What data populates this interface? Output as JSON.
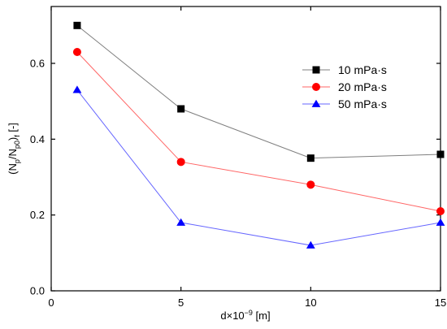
{
  "chart_data": {
    "type": "line",
    "title": "",
    "xlabel": {
      "pre": "d×10",
      "sup": "−9",
      "post": " [m]"
    },
    "ylabel": {
      "pre": "(N",
      "sub1": "p",
      "mid": "/N",
      "sub2": "p0",
      "close": ")",
      "sub3": "f",
      "post": " [-]"
    },
    "xlim": [
      0,
      15
    ],
    "ylim": [
      0,
      0.75
    ],
    "x_ticks": [
      0,
      5,
      10,
      15
    ],
    "x_tick_labels": [
      "0",
      "5",
      "10",
      "15"
    ],
    "y_ticks": [
      0,
      0.2,
      0.4,
      0.6
    ],
    "y_tick_labels": [
      "0.0",
      "0.2",
      "0.4",
      "0.6"
    ],
    "grid": false,
    "legend_position": "top-right",
    "x": [
      1,
      5,
      10,
      15
    ],
    "series": [
      {
        "name": "10 mPa·s",
        "values": [
          0.7,
          0.48,
          0.35,
          0.36
        ],
        "marker": "square",
        "marker_color": "#000000",
        "line_color": "#7f7f7f"
      },
      {
        "name": "20 mPa·s",
        "values": [
          0.63,
          0.34,
          0.28,
          0.21
        ],
        "marker": "circle",
        "marker_color": "#ff0000",
        "line_color": "#ff6666"
      },
      {
        "name": "50 mPa·s",
        "values": [
          0.53,
          0.18,
          0.12,
          0.18
        ],
        "marker": "triangle",
        "marker_color": "#0000ff",
        "line_color": "#6666ff"
      }
    ]
  }
}
